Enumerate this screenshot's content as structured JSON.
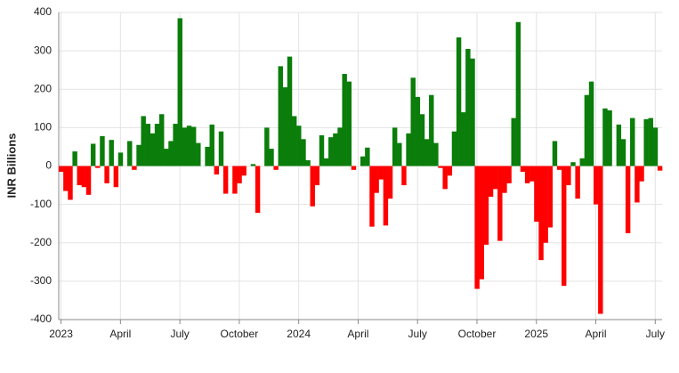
{
  "chart_data": {
    "type": "bar",
    "y_label": "INR Billions",
    "categories": [
      "2023",
      null,
      null,
      null,
      null,
      null,
      null,
      null,
      null,
      null,
      null,
      null,
      null,
      "April",
      null,
      null,
      null,
      null,
      null,
      null,
      null,
      null,
      null,
      null,
      null,
      null,
      "July",
      null,
      null,
      null,
      null,
      null,
      null,
      null,
      null,
      null,
      null,
      null,
      null,
      "October",
      null,
      null,
      null,
      null,
      null,
      null,
      null,
      null,
      null,
      null,
      null,
      null,
      "2024",
      null,
      null,
      null,
      null,
      null,
      null,
      null,
      null,
      null,
      null,
      null,
      null,
      "April",
      null,
      null,
      null,
      null,
      null,
      null,
      null,
      null,
      null,
      null,
      null,
      null,
      "July",
      null,
      null,
      null,
      null,
      null,
      null,
      null,
      null,
      null,
      null,
      null,
      null,
      "October",
      null,
      null,
      null,
      null,
      null,
      null,
      null,
      null,
      null,
      null,
      null,
      null,
      "2025",
      null,
      null,
      null,
      null,
      null,
      null,
      null,
      null,
      null,
      null,
      null,
      null,
      "April",
      null,
      null,
      null,
      null,
      null,
      null,
      null,
      null,
      null,
      null,
      null,
      null,
      "July",
      null
    ],
    "values": [
      -15,
      -65,
      -88,
      38,
      -50,
      -55,
      -75,
      58,
      -5,
      78,
      -45,
      68,
      -55,
      35,
      0,
      65,
      -10,
      55,
      130,
      110,
      85,
      110,
      135,
      45,
      65,
      110,
      385,
      100,
      105,
      102,
      60,
      0,
      50,
      108,
      -22,
      90,
      -72,
      0,
      -72,
      -45,
      -25,
      0,
      5,
      -122,
      0,
      100,
      45,
      -10,
      260,
      205,
      285,
      130,
      105,
      70,
      15,
      -105,
      -50,
      80,
      20,
      75,
      85,
      100,
      240,
      220,
      -10,
      0,
      25,
      48,
      -158,
      -70,
      -35,
      -155,
      -85,
      100,
      60,
      -50,
      85,
      230,
      180,
      135,
      70,
      185,
      60,
      -5,
      -60,
      -25,
      90,
      335,
      140,
      305,
      280,
      -320,
      -295,
      -205,
      -80,
      -60,
      -195,
      -70,
      -45,
      125,
      375,
      -15,
      -45,
      -40,
      -145,
      -245,
      -200,
      -160,
      65,
      -10,
      -312,
      -50,
      10,
      -85,
      20,
      185,
      220,
      -100,
      -385,
      150,
      145,
      0,
      108,
      70,
      -175,
      125,
      -95,
      -40,
      122,
      125,
      100,
      -12
    ],
    "positive_color": "#0a7d0a",
    "negative_color": "#ff0000",
    "ylim": [
      -400,
      400
    ],
    "yticks": [
      -400,
      -300,
      -200,
      -100,
      0,
      100,
      200,
      300,
      400
    ],
    "grid": true
  }
}
